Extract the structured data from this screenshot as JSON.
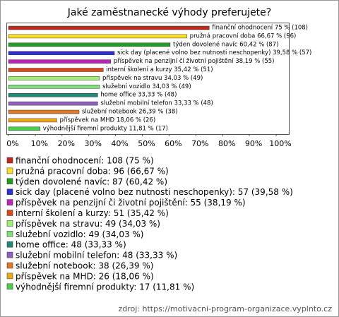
{
  "chart_data": {
    "type": "bar",
    "orientation": "horizontal",
    "title": "Jaké zaměstnanecké výhody preferujete?",
    "categories": [
      "finanční ohodnocení",
      "pružná pracovní doba",
      "týden dovolené navíc",
      "sick day (placené volno bez nutnosti neschopenky)",
      "příspěvek na penzijní či životní pojištění",
      "interní školení a kurzy",
      "příspěvek na stravu",
      "služební vozidlo",
      "home office",
      "služební mobilní telefon",
      "služební notebook",
      "příspěvek na MHD",
      "výhodnější firemní produkty"
    ],
    "values": [
      75,
      66.67,
      60.42,
      39.58,
      38.19,
      35.42,
      34.03,
      34.03,
      33.33,
      33.33,
      26.39,
      18.06,
      11.81
    ],
    "value_labels": [
      "finanční ohodnocení 75 % (108)",
      "pružná pracovní doba 66,67 % (96)",
      "týden dovolené navíc 60,42 % (87)",
      "sick day (placené volno bez nutnosti neschopenky) 39,58 % (57)",
      "příspěvek na penzijní či životní pojištění 38,19 % (55)",
      "interní školení a kurzy 35,42 % (51)",
      "příspěvek na stravu 34,03 % (49)",
      "služební vozidlo 34,03 % (49)",
      "home office 33,33 % (48)",
      "služební mobilní telefon 33,33 % (48)",
      "služební notebook 26,39 % (38)",
      "příspěvek na MHD 18,06 % (26)",
      "výhodnější firemní produkty 11,81 % (17)"
    ],
    "legend_labels": [
      "finanční ohodnocení: 108 (75 %)",
      "pružná pracovní doba: 96 (66,67 %)",
      "týden dovolené navíc: 87 (60,42 %)",
      "sick day (placené volno bez nutnosti neschopenky): 57 (39,58 %)",
      "příspěvek na penzijní či životní pojištění: 55 (38,19 %)",
      "interní školení a kurzy: 51 (35,42 %)",
      "příspěvek na stravu: 49 (34,03 %)",
      "služební vozidlo: 49 (34,03 %)",
      "home office: 48 (33,33 %)",
      "služební mobilní telefon: 48 (33,33 %)",
      "služební notebook: 38 (26,39 %)",
      "příspěvek na MHD: 26 (18,06 %)",
      "výhodnější firemní produkty: 17 (11,81 %)"
    ],
    "colors": [
      "#c0281e",
      "#ffe020",
      "#20a020",
      "#3030d0",
      "#c020c0",
      "#e04818",
      "#a0f070",
      "#80e080",
      "#208878",
      "#9060c0",
      "#e07828",
      "#f0a818",
      "#48d048"
    ],
    "xlim": [
      0,
      100
    ],
    "xticks": [
      {
        "value": 0,
        "label": "0%"
      },
      {
        "value": 10,
        "label": "10%"
      },
      {
        "value": 20,
        "label": "20%"
      },
      {
        "value": 30,
        "label": "30%"
      },
      {
        "value": 40,
        "label": "40%"
      },
      {
        "value": 50,
        "label": "50%"
      },
      {
        "value": 60,
        "label": "60%"
      },
      {
        "value": 70,
        "label": "70%"
      },
      {
        "value": 80,
        "label": "80%"
      },
      {
        "value": 90,
        "label": "90%"
      },
      {
        "value": 100,
        "label": "100%"
      }
    ],
    "source": "zdroj: https://motivacni-program-organizace.vyplnto.cz"
  }
}
